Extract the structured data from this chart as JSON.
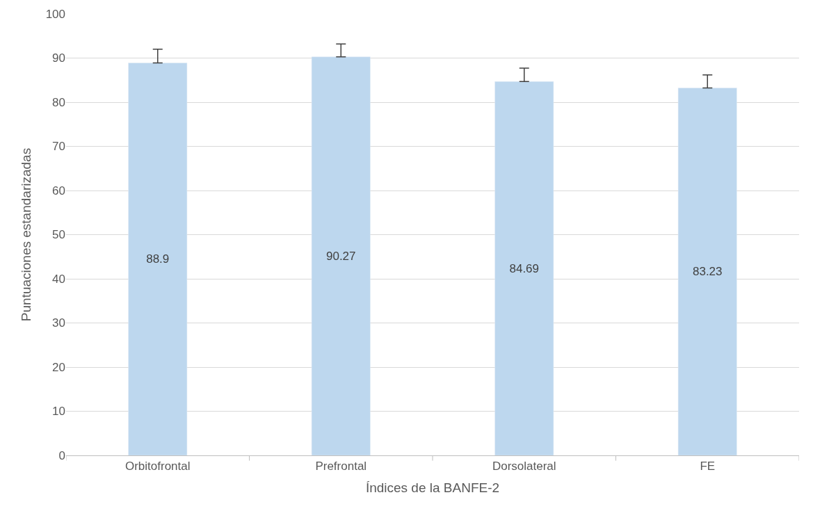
{
  "chart_data": {
    "type": "bar",
    "xlabel": "Índices de la BANFE-2",
    "ylabel": "Puntuaciones estandarizadas",
    "categories": [
      "Orbitofrontal",
      "Prefrontal",
      "Dorsolateral",
      "FE"
    ],
    "values": [
      88.9,
      90.27,
      84.69,
      83.23
    ],
    "errors": [
      [
        88.9,
        92
      ],
      [
        90.27,
        93.2
      ],
      [
        84.69,
        87.7
      ],
      [
        83.23,
        86.2
      ]
    ],
    "color": "#bdd7ee",
    "data_labels": true,
    "ylim": [
      0,
      100
    ],
    "yticks": [
      0,
      10,
      20,
      30,
      40,
      50,
      60,
      70,
      80,
      90,
      100
    ],
    "grid": "y",
    "legend": false
  }
}
